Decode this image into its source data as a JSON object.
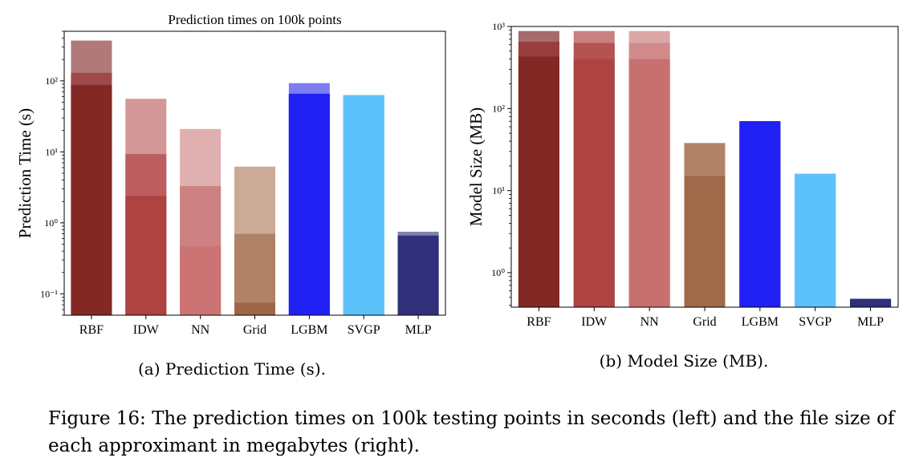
{
  "chart_data": [
    {
      "type": "bar",
      "title": "Prediction times on 100k points",
      "ylabel": "Prediction Time (s)",
      "xlabel": "",
      "yscale": "log",
      "ylim": [
        0.05,
        500
      ],
      "ytick_labels": [
        "10⁻¹",
        "10⁰",
        "10¹",
        "10²"
      ],
      "categories": [
        "RBF",
        "IDW",
        "NN",
        "Grid",
        "LGBM",
        "SVGP",
        "MLP"
      ],
      "layers": [
        {
          "values": [
            370,
            56,
            21,
            6.2,
            93,
            63,
            0.75
          ],
          "colors": [
            "#b07a7a",
            "#d49797",
            "#e0b0b0",
            "#cbaa96",
            "#7d7df2",
            "#5ec2fa",
            "#7f82ad"
          ]
        },
        {
          "values": [
            130,
            9.3,
            3.3,
            0.7,
            66,
            63,
            0.66
          ],
          "colors": [
            "#9e4a4a",
            "#bd5e5e",
            "#cc8282",
            "#b08266",
            "#2020f5",
            "#5ec2fa",
            "#2f2f7a"
          ]
        },
        {
          "values": [
            88,
            2.4,
            0.47,
            0.075,
            63,
            63,
            0.66
          ],
          "colors": [
            "#842826",
            "#ad4442",
            "#cc7474",
            "#9e6647",
            "#2020f5",
            "#5ec2fa",
            "#2f2f7a"
          ]
        }
      ],
      "subcaption": "(a) Prediction Time (s)."
    },
    {
      "type": "bar",
      "title": "",
      "ylabel": "Model Size (MB)",
      "xlabel": "",
      "yscale": "log",
      "ylim": [
        0.38,
        1000
      ],
      "ytick_labels": [
        "10⁰",
        "10¹",
        "10²",
        "10³"
      ],
      "categories": [
        "RBF",
        "IDW",
        "NN",
        "Grid",
        "LGBM",
        "SVGP",
        "MLP"
      ],
      "layers": [
        {
          "values": [
            880,
            880,
            880,
            38,
            70,
            16,
            0.48
          ],
          "colors": [
            "#a86a6a",
            "#c88080",
            "#dba7a7",
            "#b08266",
            "#2020f5",
            "#5ec2fa",
            "#2f2f7a"
          ]
        },
        {
          "values": [
            650,
            630,
            630,
            15,
            70,
            16,
            0.48
          ],
          "colors": [
            "#983e3e",
            "#b55252",
            "#d08a8a",
            "#a0694a",
            "#2020f5",
            "#5ec2fa",
            "#2f2f7a"
          ]
        },
        {
          "values": [
            430,
            400,
            400,
            15,
            70,
            16,
            0.48
          ],
          "colors": [
            "#842826",
            "#ad4442",
            "#c87070",
            "#a0694a",
            "#2020f5",
            "#5ec2fa",
            "#2f2f7a"
          ]
        }
      ],
      "subcaption": "(b) Model Size (MB)."
    }
  ],
  "caption": "Figure 16: The prediction times on 100k testing points in seconds (left) and the file size of each approximant in megabytes (right)."
}
